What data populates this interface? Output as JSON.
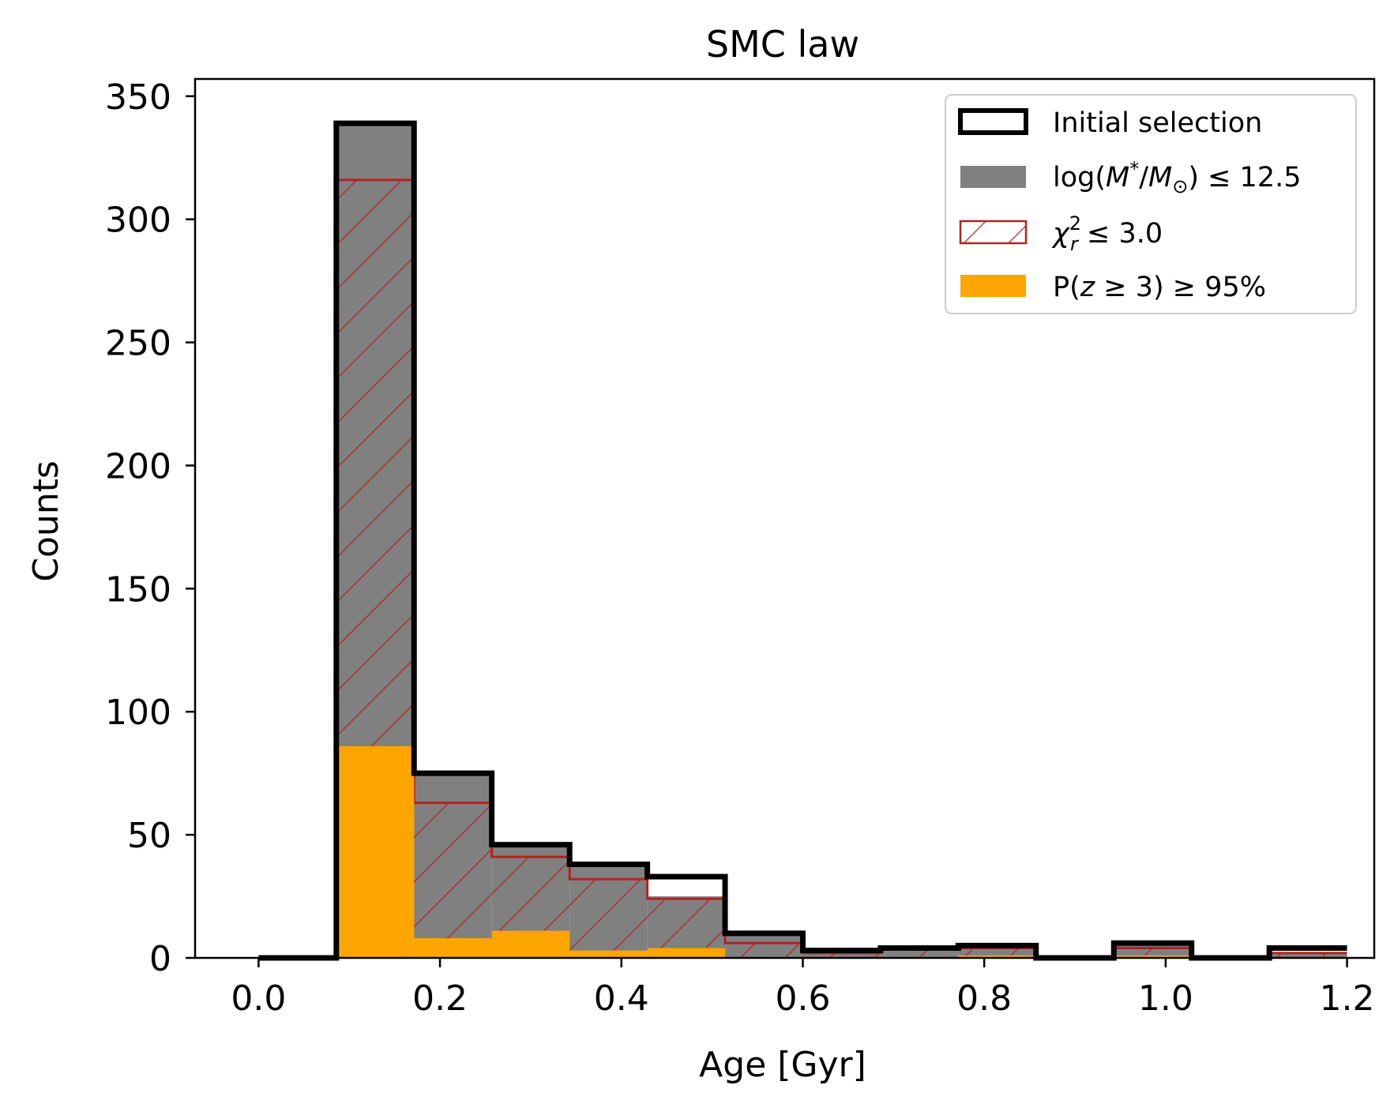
{
  "chart_data": {
    "type": "histogram",
    "title": "SMC law",
    "xlabel": "Age [Gyr]",
    "ylabel": "Counts",
    "xlim": [
      -0.07,
      1.23
    ],
    "ylim": [
      0,
      357
    ],
    "xticks": [
      "0.0",
      "0.2",
      "0.4",
      "0.6",
      "0.8",
      "1.0",
      "1.2"
    ],
    "xtick_values": [
      0.0,
      0.2,
      0.4,
      0.6,
      0.8,
      1.0,
      1.2
    ],
    "yticks": [
      "0",
      "50",
      "100",
      "150",
      "200",
      "250",
      "300",
      "350"
    ],
    "ytick_values": [
      0,
      50,
      100,
      150,
      200,
      250,
      300,
      350
    ],
    "bin_edges": [
      0.0,
      0.0857,
      0.1714,
      0.2571,
      0.3429,
      0.4286,
      0.5143,
      0.6,
      0.6857,
      0.7714,
      0.8571,
      0.9429,
      1.0286,
      1.1143,
      1.2
    ],
    "series": [
      {
        "name": "Initial selection",
        "style": "step-outline",
        "color": "#000000",
        "values": [
          0,
          339,
          75,
          46,
          38,
          33,
          10,
          3,
          4,
          5,
          0,
          6,
          0,
          4
        ]
      },
      {
        "name": "log(M*/M☉) ≤ 12.5",
        "style": "filled",
        "color": "#808080",
        "values": [
          0,
          339,
          75,
          46,
          38,
          25,
          10,
          3,
          4,
          5,
          0,
          6,
          0,
          2
        ]
      },
      {
        "name": "χr² ≤ 3.0",
        "style": "hatched",
        "color": "#b22222",
        "values": [
          0,
          316,
          63,
          41,
          32,
          24,
          6,
          2,
          4,
          4,
          0,
          4,
          0,
          2
        ]
      },
      {
        "name": "P(z ≥ 3) ≥ 95%",
        "style": "filled",
        "color": "#ffa500",
        "values": [
          0,
          86,
          8,
          11,
          3,
          4,
          0,
          0,
          0,
          1,
          0,
          1,
          0,
          0
        ]
      }
    ],
    "legend": {
      "position": "top-right",
      "entries": [
        {
          "base": "Initial selection"
        },
        {
          "base": "log(",
          "m1": "M",
          "sup1": "*",
          "sl": "/",
          "m2": "M",
          "sub2": "⊙",
          "tail": ") ≤ 12.5"
        },
        {
          "chi": "χ",
          "sup": "2",
          "sub": "r",
          "tail": " ≤ 3.0"
        },
        {
          "head": "P(",
          "z": "z",
          "mid": " ≥ 3) ≥ 95%"
        }
      ]
    }
  }
}
